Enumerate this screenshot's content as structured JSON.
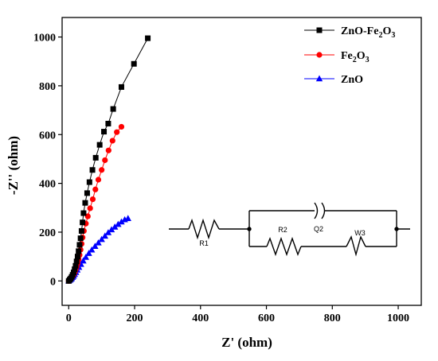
{
  "chart_data": {
    "type": "scatter",
    "xlabel": "Z' (ohm)",
    "ylabel": "-Z'' (ohm)",
    "xlim": [
      -20,
      1070
    ],
    "ylim": [
      -100,
      1080
    ],
    "xticks": [
      "0",
      "200",
      "400",
      "600",
      "800",
      "1000"
    ],
    "yticks": [
      "0",
      "200",
      "400",
      "600",
      "800",
      "1000"
    ],
    "legend_position": "top-right",
    "series": [
      {
        "name": "ZnO-Fe2O3",
        "legend_main": "ZnO-Fe",
        "legend_sub1": "2",
        "legend_mid": "O",
        "legend_sub2": "3",
        "color": "#000000",
        "marker": "square",
        "points": [
          [
            0,
            0
          ],
          [
            3,
            5
          ],
          [
            6,
            10
          ],
          [
            9,
            17
          ],
          [
            12,
            25
          ],
          [
            15,
            35
          ],
          [
            18,
            48
          ],
          [
            21,
            62
          ],
          [
            24,
            80
          ],
          [
            27,
            100
          ],
          [
            30,
            122
          ],
          [
            33,
            148
          ],
          [
            36,
            175
          ],
          [
            39,
            205
          ],
          [
            42,
            240
          ],
          [
            45,
            278
          ],
          [
            50,
            320
          ],
          [
            56,
            360
          ],
          [
            63,
            405
          ],
          [
            72,
            455
          ],
          [
            82,
            505
          ],
          [
            94,
            558
          ],
          [
            107,
            612
          ],
          [
            120,
            645
          ],
          [
            135,
            705
          ],
          [
            160,
            795
          ],
          [
            198,
            890
          ],
          [
            240,
            995
          ]
        ]
      },
      {
        "name": "Fe2O3",
        "legend_main": "Fe",
        "legend_sub1": "2",
        "legend_mid": "O",
        "legend_sub2": "3",
        "color": "#ff0000",
        "marker": "circle",
        "points": [
          [
            0,
            0
          ],
          [
            3,
            4
          ],
          [
            6,
            8
          ],
          [
            9,
            13
          ],
          [
            12,
            19
          ],
          [
            15,
            26
          ],
          [
            18,
            35
          ],
          [
            21,
            46
          ],
          [
            24,
            58
          ],
          [
            27,
            72
          ],
          [
            30,
            88
          ],
          [
            33,
            106
          ],
          [
            36,
            128
          ],
          [
            39,
            152
          ],
          [
            42,
            178
          ],
          [
            46,
            205
          ],
          [
            52,
            235
          ],
          [
            58,
            265
          ],
          [
            65,
            298
          ],
          [
            73,
            335
          ],
          [
            81,
            375
          ],
          [
            90,
            415
          ],
          [
            100,
            455
          ],
          [
            110,
            495
          ],
          [
            121,
            535
          ],
          [
            133,
            575
          ],
          [
            146,
            610
          ],
          [
            160,
            632
          ]
        ]
      },
      {
        "name": "ZnO",
        "legend_main": "ZnO",
        "legend_sub1": "",
        "legend_mid": "",
        "legend_sub2": "",
        "color": "#0000ff",
        "marker": "triangle",
        "points": [
          [
            0,
            0
          ],
          [
            3,
            3
          ],
          [
            6,
            6
          ],
          [
            9,
            10
          ],
          [
            12,
            15
          ],
          [
            15,
            20
          ],
          [
            18,
            27
          ],
          [
            22,
            35
          ],
          [
            26,
            45
          ],
          [
            31,
            56
          ],
          [
            37,
            68
          ],
          [
            44,
            82
          ],
          [
            52,
            97
          ],
          [
            61,
            113
          ],
          [
            70,
            127
          ],
          [
            80,
            142
          ],
          [
            90,
            156
          ],
          [
            100,
            170
          ],
          [
            110,
            184
          ],
          [
            120,
            198
          ],
          [
            130,
            210
          ],
          [
            140,
            221
          ],
          [
            150,
            232
          ],
          [
            160,
            242
          ],
          [
            170,
            251
          ],
          [
            180,
            256
          ]
        ]
      }
    ]
  },
  "circuit": {
    "labels": [
      "R1",
      "R2",
      "Q2",
      "W3"
    ]
  }
}
